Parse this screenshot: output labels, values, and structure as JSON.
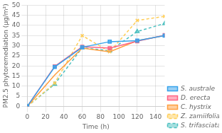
{
  "chart_data": {
    "type": "line",
    "x": [
      0,
      30,
      60,
      90,
      120,
      150
    ],
    "series": [
      {
        "name": "S. australe",
        "values": [
          0,
          19.5,
          29.2,
          32.0,
          32.5,
          35.0
        ],
        "marker": "square",
        "line_style": "solid"
      },
      {
        "name": "D. erecta",
        "values": [
          0,
          19.8,
          29.5,
          28.8,
          32.2,
          35.2
        ],
        "marker": "square",
        "line_style": "solid"
      },
      {
        "name": "C. hystrix",
        "values": [
          0,
          15.5,
          28.8,
          27.0,
          32.5,
          35.0
        ],
        "marker": "none",
        "line_style": "solid"
      },
      {
        "name": "Z. zamiifolia",
        "values": [
          0,
          11.5,
          35.0,
          27.0,
          42.5,
          44.5
        ],
        "marker": "x",
        "line_style": "dashed"
      },
      {
        "name": "S. trifasciata",
        "values": [
          0,
          11.0,
          29.0,
          27.5,
          37.0,
          41.0
        ],
        "marker": "triangle",
        "line_style": "dashed"
      }
    ],
    "xlabel": "Time (h)",
    "ylabel": "PM2.5 phytoremediation (μg/m²)",
    "xlim": [
      0,
      150
    ],
    "ylim": [
      0,
      50
    ],
    "xticks": [
      0,
      20,
      40,
      60,
      80,
      100,
      120,
      140
    ],
    "yticks": [
      0,
      5,
      10,
      15,
      20,
      25,
      30,
      35,
      40,
      45,
      50
    ],
    "grid": true,
    "legend": "lower right"
  }
}
